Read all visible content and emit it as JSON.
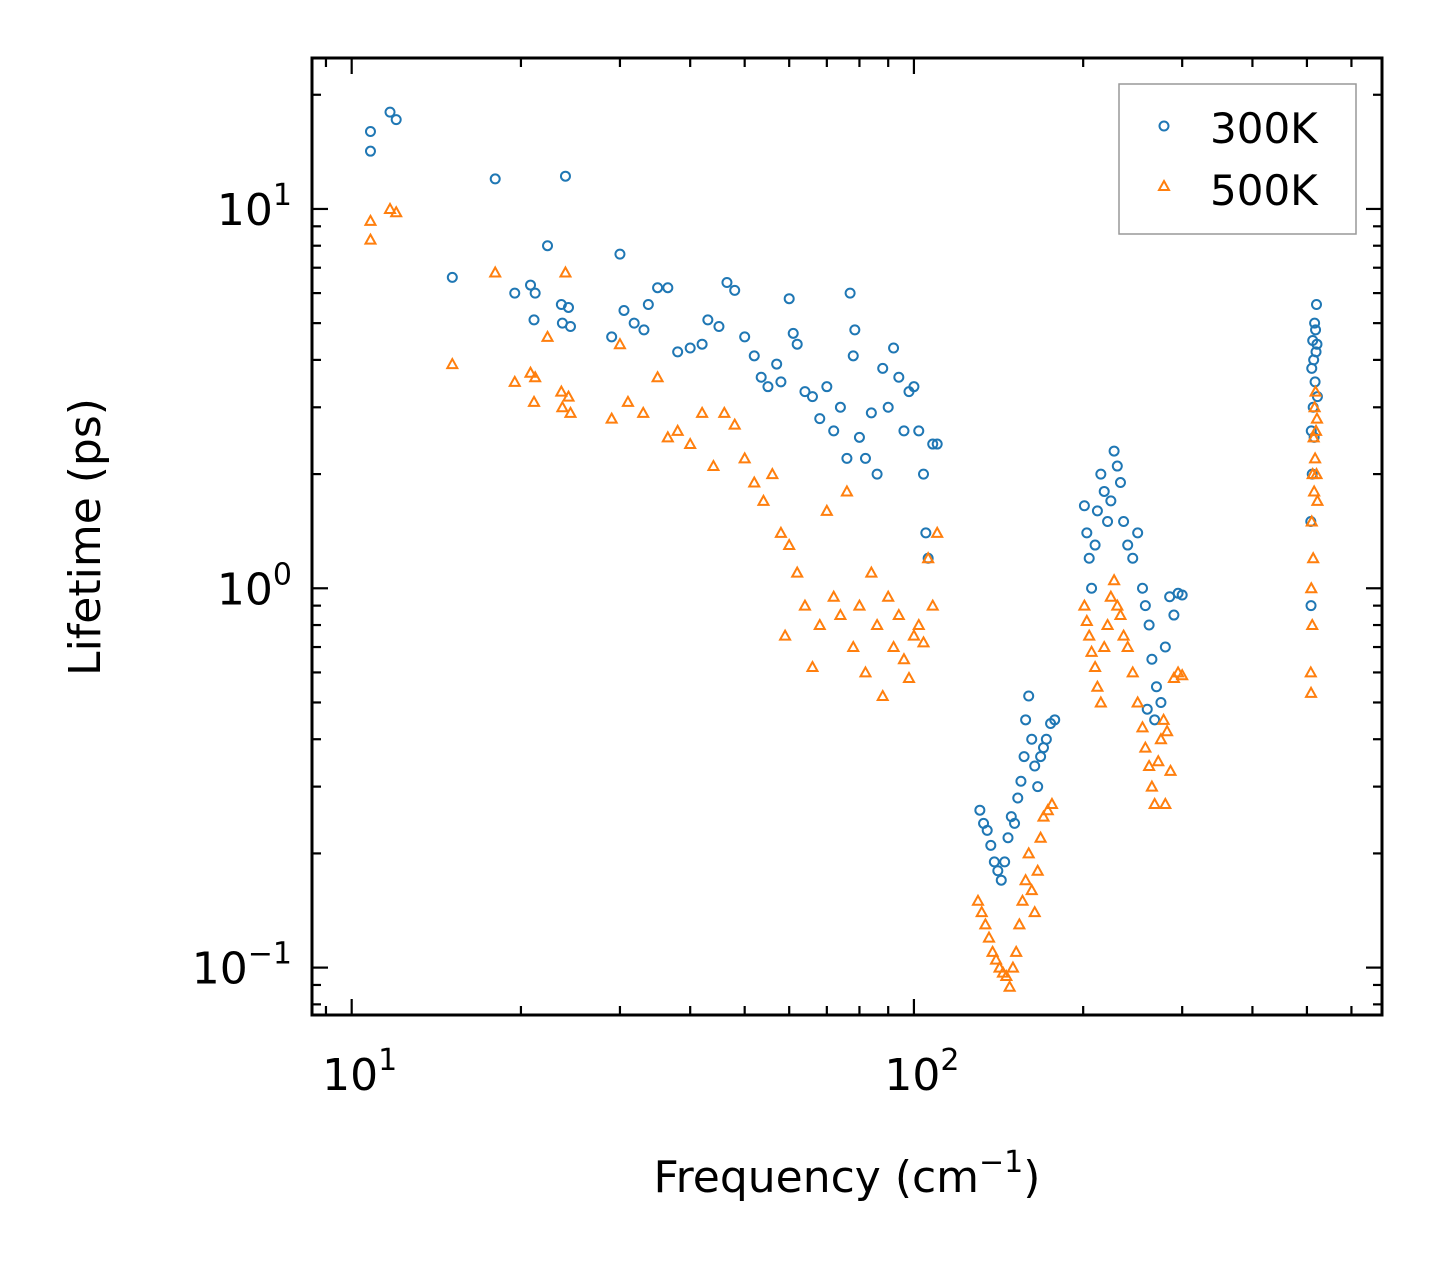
{
  "chart_data": {
    "type": "scatter",
    "title": "",
    "xlabel": "Frequency (cm",
    "xlabel_sup": "−1",
    "xlabel_end": ")",
    "ylabel": "Lifetime (ps)",
    "xscale": "log",
    "yscale": "log",
    "xlim": [
      8.5,
      680
    ],
    "ylim": [
      0.075,
      25
    ],
    "x_ticks": [
      {
        "value": 10,
        "base": "10",
        "exp": "1"
      },
      {
        "value": 100,
        "base": "10",
        "exp": "2"
      }
    ],
    "y_ticks": [
      {
        "value": 0.1,
        "base": "10",
        "exp": "−1"
      },
      {
        "value": 1,
        "base": "10",
        "exp": "0"
      },
      {
        "value": 10,
        "base": "10",
        "exp": "1"
      }
    ],
    "legend_position": "top-right",
    "series": [
      {
        "name": "300K",
        "marker": "circle",
        "color": "#1f77b4",
        "points": [
          [
            10.8,
            16.0
          ],
          [
            10.8,
            14.2
          ],
          [
            11.7,
            18.0
          ],
          [
            12.0,
            17.2
          ],
          [
            15.1,
            6.6
          ],
          [
            18.0,
            12.0
          ],
          [
            19.5,
            6.0
          ],
          [
            20.8,
            6.3
          ],
          [
            21.1,
            5.1
          ],
          [
            21.2,
            6.0
          ],
          [
            22.3,
            8.0
          ],
          [
            23.6,
            5.6
          ],
          [
            23.7,
            5.0
          ],
          [
            24.0,
            12.2
          ],
          [
            24.3,
            5.5
          ],
          [
            24.5,
            4.9
          ],
          [
            29.0,
            4.6
          ],
          [
            30.0,
            7.6
          ],
          [
            30.5,
            5.4
          ],
          [
            31.8,
            5.0
          ],
          [
            33.1,
            4.8
          ],
          [
            33.7,
            5.6
          ],
          [
            35.0,
            6.2
          ],
          [
            36.5,
            6.2
          ],
          [
            38.0,
            4.2
          ],
          [
            40.0,
            4.3
          ],
          [
            42.0,
            4.4
          ],
          [
            43.0,
            5.1
          ],
          [
            45.0,
            4.9
          ],
          [
            46.5,
            6.4
          ],
          [
            48.0,
            6.1
          ],
          [
            50.0,
            4.6
          ],
          [
            52.0,
            4.1
          ],
          [
            53.5,
            3.6
          ],
          [
            55.0,
            3.4
          ],
          [
            57.0,
            3.9
          ],
          [
            58.0,
            3.5
          ],
          [
            60.0,
            5.8
          ],
          [
            61.0,
            4.7
          ],
          [
            62.0,
            4.4
          ],
          [
            64.0,
            3.3
          ],
          [
            66.0,
            3.2
          ],
          [
            68.0,
            2.8
          ],
          [
            70.0,
            3.4
          ],
          [
            72.0,
            2.6
          ],
          [
            74.0,
            3.0
          ],
          [
            76.0,
            2.2
          ],
          [
            77.0,
            6.0
          ],
          [
            78.0,
            4.1
          ],
          [
            78.5,
            4.8
          ],
          [
            80.0,
            2.5
          ],
          [
            82.0,
            2.2
          ],
          [
            84.0,
            2.9
          ],
          [
            86.0,
            2.0
          ],
          [
            88.0,
            3.8
          ],
          [
            90.0,
            3.0
          ],
          [
            92.0,
            4.3
          ],
          [
            94.0,
            3.6
          ],
          [
            96.0,
            2.6
          ],
          [
            98.0,
            3.3
          ],
          [
            100.0,
            3.4
          ],
          [
            102.0,
            2.6
          ],
          [
            104.0,
            2.0
          ],
          [
            105.0,
            1.4
          ],
          [
            106.0,
            1.2
          ],
          [
            108.0,
            2.4
          ],
          [
            110.0,
            2.4
          ],
          [
            131.0,
            0.26
          ],
          [
            133.0,
            0.24
          ],
          [
            135.0,
            0.23
          ],
          [
            137.0,
            0.21
          ],
          [
            139.0,
            0.19
          ],
          [
            141.0,
            0.18
          ],
          [
            143.0,
            0.17
          ],
          [
            145.0,
            0.19
          ],
          [
            147.0,
            0.22
          ],
          [
            149.0,
            0.25
          ],
          [
            151.0,
            0.24
          ],
          [
            153.0,
            0.28
          ],
          [
            155.0,
            0.31
          ],
          [
            157.0,
            0.36
          ],
          [
            158.0,
            0.45
          ],
          [
            160.0,
            0.52
          ],
          [
            162.0,
            0.4
          ],
          [
            164.0,
            0.34
          ],
          [
            166.0,
            0.3
          ],
          [
            168.0,
            0.36
          ],
          [
            170.0,
            0.38
          ],
          [
            172.0,
            0.4
          ],
          [
            175.0,
            0.44
          ],
          [
            178.0,
            0.45
          ],
          [
            201.0,
            1.65
          ],
          [
            203.0,
            1.4
          ],
          [
            205.0,
            1.2
          ],
          [
            207.0,
            1.0
          ],
          [
            210.0,
            1.3
          ],
          [
            212.0,
            1.6
          ],
          [
            215.0,
            2.0
          ],
          [
            218.0,
            1.8
          ],
          [
            221.0,
            1.5
          ],
          [
            224.0,
            1.7
          ],
          [
            227.0,
            2.3
          ],
          [
            230.0,
            2.1
          ],
          [
            233.0,
            1.9
          ],
          [
            236.0,
            1.5
          ],
          [
            240.0,
            1.3
          ],
          [
            245.0,
            1.2
          ],
          [
            250.0,
            1.4
          ],
          [
            255.0,
            1.0
          ],
          [
            258.0,
            0.9
          ],
          [
            262.0,
            0.8
          ],
          [
            265.0,
            0.65
          ],
          [
            270.0,
            0.55
          ],
          [
            275.0,
            0.5
          ],
          [
            280.0,
            0.7
          ],
          [
            285.0,
            0.95
          ],
          [
            290.0,
            0.85
          ],
          [
            295.0,
            0.97
          ],
          [
            300.0,
            0.96
          ],
          [
            260.0,
            0.48
          ],
          [
            268.0,
            0.45
          ],
          [
            508.0,
            1.5
          ],
          [
            508.5,
            0.9
          ],
          [
            509.0,
            2.6
          ],
          [
            510.0,
            3.8
          ],
          [
            511.0,
            2.0
          ],
          [
            512.0,
            4.5
          ],
          [
            513.0,
            3.0
          ],
          [
            514.0,
            4.0
          ],
          [
            515.0,
            2.5
          ],
          [
            516.0,
            5.0
          ],
          [
            517.0,
            3.5
          ],
          [
            518.0,
            4.8
          ],
          [
            519.0,
            4.2
          ],
          [
            520.0,
            5.6
          ],
          [
            521.0,
            4.4
          ],
          [
            522.0,
            3.2
          ]
        ]
      },
      {
        "name": "500K",
        "marker": "triangle",
        "color": "#ff7f0e",
        "points": [
          [
            10.8,
            9.3
          ],
          [
            10.8,
            8.3
          ],
          [
            11.7,
            10.0
          ],
          [
            12.0,
            9.8
          ],
          [
            15.1,
            3.9
          ],
          [
            18.0,
            6.8
          ],
          [
            19.5,
            3.5
          ],
          [
            20.8,
            3.7
          ],
          [
            21.1,
            3.1
          ],
          [
            21.2,
            3.6
          ],
          [
            22.3,
            4.6
          ],
          [
            23.6,
            3.3
          ],
          [
            23.7,
            3.0
          ],
          [
            24.0,
            6.8
          ],
          [
            24.3,
            3.2
          ],
          [
            24.5,
            2.9
          ],
          [
            29.0,
            2.8
          ],
          [
            30.0,
            4.4
          ],
          [
            31.0,
            3.1
          ],
          [
            33.0,
            2.9
          ],
          [
            35.0,
            3.6
          ],
          [
            36.5,
            2.5
          ],
          [
            38.0,
            2.6
          ],
          [
            40.0,
            2.4
          ],
          [
            42.0,
            2.9
          ],
          [
            44.0,
            2.1
          ],
          [
            46.0,
            2.9
          ],
          [
            48.0,
            2.7
          ],
          [
            50.0,
            2.2
          ],
          [
            52.0,
            1.9
          ],
          [
            54.0,
            1.7
          ],
          [
            56.0,
            2.0
          ],
          [
            58.0,
            1.4
          ],
          [
            59.0,
            0.75
          ],
          [
            60.0,
            1.3
          ],
          [
            62.0,
            1.1
          ],
          [
            64.0,
            0.9
          ],
          [
            66.0,
            0.62
          ],
          [
            68.0,
            0.8
          ],
          [
            70.0,
            1.6
          ],
          [
            72.0,
            0.95
          ],
          [
            74.0,
            0.85
          ],
          [
            76.0,
            1.8
          ],
          [
            78.0,
            0.7
          ],
          [
            80.0,
            0.9
          ],
          [
            82.0,
            0.6
          ],
          [
            84.0,
            1.1
          ],
          [
            86.0,
            0.8
          ],
          [
            88.0,
            0.52
          ],
          [
            90.0,
            0.95
          ],
          [
            92.0,
            0.7
          ],
          [
            94.0,
            0.85
          ],
          [
            96.0,
            0.65
          ],
          [
            98.0,
            0.58
          ],
          [
            100.0,
            0.75
          ],
          [
            102.0,
            0.8
          ],
          [
            104.0,
            0.72
          ],
          [
            106.0,
            1.2
          ],
          [
            108.0,
            0.9
          ],
          [
            110.0,
            1.4
          ],
          [
            130.0,
            0.15
          ],
          [
            132.0,
            0.14
          ],
          [
            134.0,
            0.13
          ],
          [
            136.0,
            0.12
          ],
          [
            138.0,
            0.11
          ],
          [
            140.0,
            0.105
          ],
          [
            142.0,
            0.1
          ],
          [
            144.0,
            0.097
          ],
          [
            146.0,
            0.095
          ],
          [
            148.0,
            0.089
          ],
          [
            150.0,
            0.1
          ],
          [
            152.0,
            0.11
          ],
          [
            154.0,
            0.13
          ],
          [
            156.0,
            0.15
          ],
          [
            158.0,
            0.17
          ],
          [
            160.0,
            0.2
          ],
          [
            162.0,
            0.16
          ],
          [
            164.0,
            0.14
          ],
          [
            166.0,
            0.18
          ],
          [
            168.0,
            0.22
          ],
          [
            170.0,
            0.25
          ],
          [
            173.0,
            0.26
          ],
          [
            176.0,
            0.27
          ],
          [
            201.0,
            0.9
          ],
          [
            203.0,
            0.82
          ],
          [
            205.0,
            0.75
          ],
          [
            207.0,
            0.68
          ],
          [
            210.0,
            0.62
          ],
          [
            212.0,
            0.55
          ],
          [
            215.0,
            0.5
          ],
          [
            218.0,
            0.7
          ],
          [
            221.0,
            0.8
          ],
          [
            224.0,
            0.95
          ],
          [
            227.0,
            1.05
          ],
          [
            230.0,
            0.9
          ],
          [
            233.0,
            0.85
          ],
          [
            236.0,
            0.75
          ],
          [
            240.0,
            0.7
          ],
          [
            245.0,
            0.6
          ],
          [
            250.0,
            0.5
          ],
          [
            255.0,
            0.43
          ],
          [
            258.0,
            0.38
          ],
          [
            262.0,
            0.34
          ],
          [
            265.0,
            0.3
          ],
          [
            268.0,
            0.27
          ],
          [
            272.0,
            0.35
          ],
          [
            275.0,
            0.4
          ],
          [
            278.0,
            0.45
          ],
          [
            282.0,
            0.42
          ],
          [
            286.0,
            0.33
          ],
          [
            290.0,
            0.58
          ],
          [
            295.0,
            0.6
          ],
          [
            300.0,
            0.59
          ],
          [
            280.0,
            0.27
          ],
          [
            508.0,
            0.6
          ],
          [
            508.5,
            0.53
          ],
          [
            509.0,
            1.0
          ],
          [
            510.0,
            1.5
          ],
          [
            511.0,
            0.8
          ],
          [
            512.0,
            2.0
          ],
          [
            513.0,
            1.2
          ],
          [
            514.0,
            2.5
          ],
          [
            515.0,
            1.8
          ],
          [
            516.0,
            3.0
          ],
          [
            517.0,
            2.2
          ],
          [
            518.0,
            3.3
          ],
          [
            519.0,
            2.6
          ],
          [
            520.0,
            2.0
          ],
          [
            521.0,
            2.8
          ],
          [
            522.0,
            1.7
          ]
        ]
      }
    ]
  }
}
